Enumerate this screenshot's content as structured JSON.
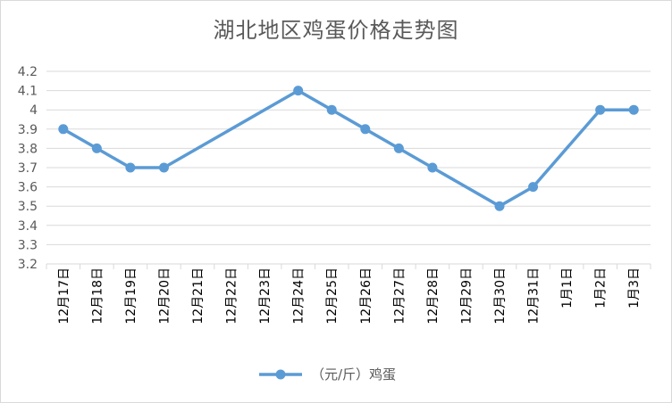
{
  "chart_data": {
    "type": "line",
    "title": "湖北地区鸡蛋价格走势图",
    "categories": [
      "12月17日",
      "12月18日",
      "12月19日",
      "12月20日",
      "12月21日",
      "12月22日",
      "12月23日",
      "12月24日",
      "12月25日",
      "12月26日",
      "12月27日",
      "12月28日",
      "12月29日",
      "12月30日",
      "12月31日",
      "1月1日",
      "1月2日",
      "1月3日"
    ],
    "series": [
      {
        "name": "（元/斤）鸡蛋",
        "values": [
          3.9,
          3.8,
          3.7,
          3.7,
          null,
          null,
          null,
          4.1,
          4.0,
          3.9,
          3.8,
          3.7,
          null,
          3.5,
          3.6,
          null,
          4.0,
          4.0
        ],
        "color": "#5b9bd5"
      }
    ],
    "ylim": [
      3.2,
      4.2
    ],
    "yticks": [
      "4.2",
      "4.1",
      "4",
      "3.9",
      "3.8",
      "3.7",
      "3.6",
      "3.5",
      "3.4",
      "3.3",
      "3.2"
    ],
    "ytick_values": [
      4.2,
      4.1,
      4.0,
      3.9,
      3.8,
      3.7,
      3.6,
      3.5,
      3.4,
      3.3,
      3.2
    ],
    "grid": true,
    "legend_position": "bottom",
    "xlabel": "",
    "ylabel": ""
  }
}
